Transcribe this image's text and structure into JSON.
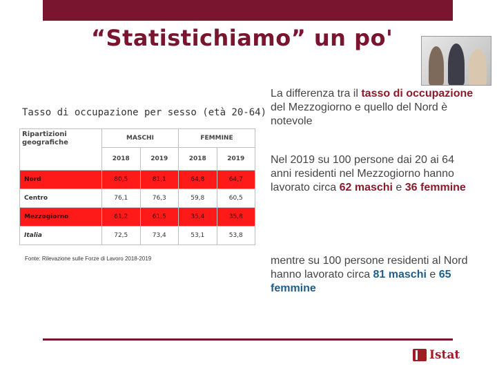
{
  "slide": {
    "title": "“Statistichiamo” un po'"
  },
  "table": {
    "caption": "Tasso di occupazione per sesso (età 20-64)",
    "header_label": "Ripartizioni geografiche",
    "groups": [
      "MASCHI",
      "FEMMINE"
    ],
    "years": [
      "2018",
      "2019",
      "2018",
      "2019"
    ],
    "rows": [
      {
        "region": "Nord",
        "values": [
          "80,5",
          "81,1",
          "64,8",
          "64,7"
        ],
        "highlight": true
      },
      {
        "region": "Centro",
        "values": [
          "76,1",
          "76,3",
          "59,8",
          "60,5"
        ],
        "highlight": false
      },
      {
        "region": "Mezzogiorno",
        "values": [
          "61,2",
          "61,5",
          "35,4",
          "35,8"
        ],
        "highlight": true
      },
      {
        "region": "Italia",
        "values": [
          "72,5",
          "73,4",
          "53,1",
          "53,8"
        ],
        "highlight": false
      }
    ],
    "source": "Fonte: Rilevazione sulle Forze di Lavoro 2018-2019",
    "highlight_color": "#ff1a1a"
  },
  "text": {
    "p1_a": "La differenza tra il ",
    "p1_b": "tasso di occupazione",
    "p1_c": " del Mezzogiorno e quello del Nord è notevole",
    "p2_a": "Nel 2019 su 100 persone dai 20 ai 64 anni residenti nel Mezzogiorno hanno lavorato circa ",
    "p2_b": "62 maschi",
    "p2_c": " e ",
    "p2_d": "36 femmine",
    "p3_a": "mentre su 100 persone residenti al Nord hanno lavorato circa ",
    "p3_b": "81 maschi",
    "p3_c": " e ",
    "p3_d": "65 femmine"
  },
  "logo": {
    "text": "Istat",
    "icon": "istat-logo-icon"
  },
  "colors": {
    "brand": "#7a1530",
    "accent_red": "#8b1a2a",
    "accent_blue": "#1f5e8a"
  }
}
